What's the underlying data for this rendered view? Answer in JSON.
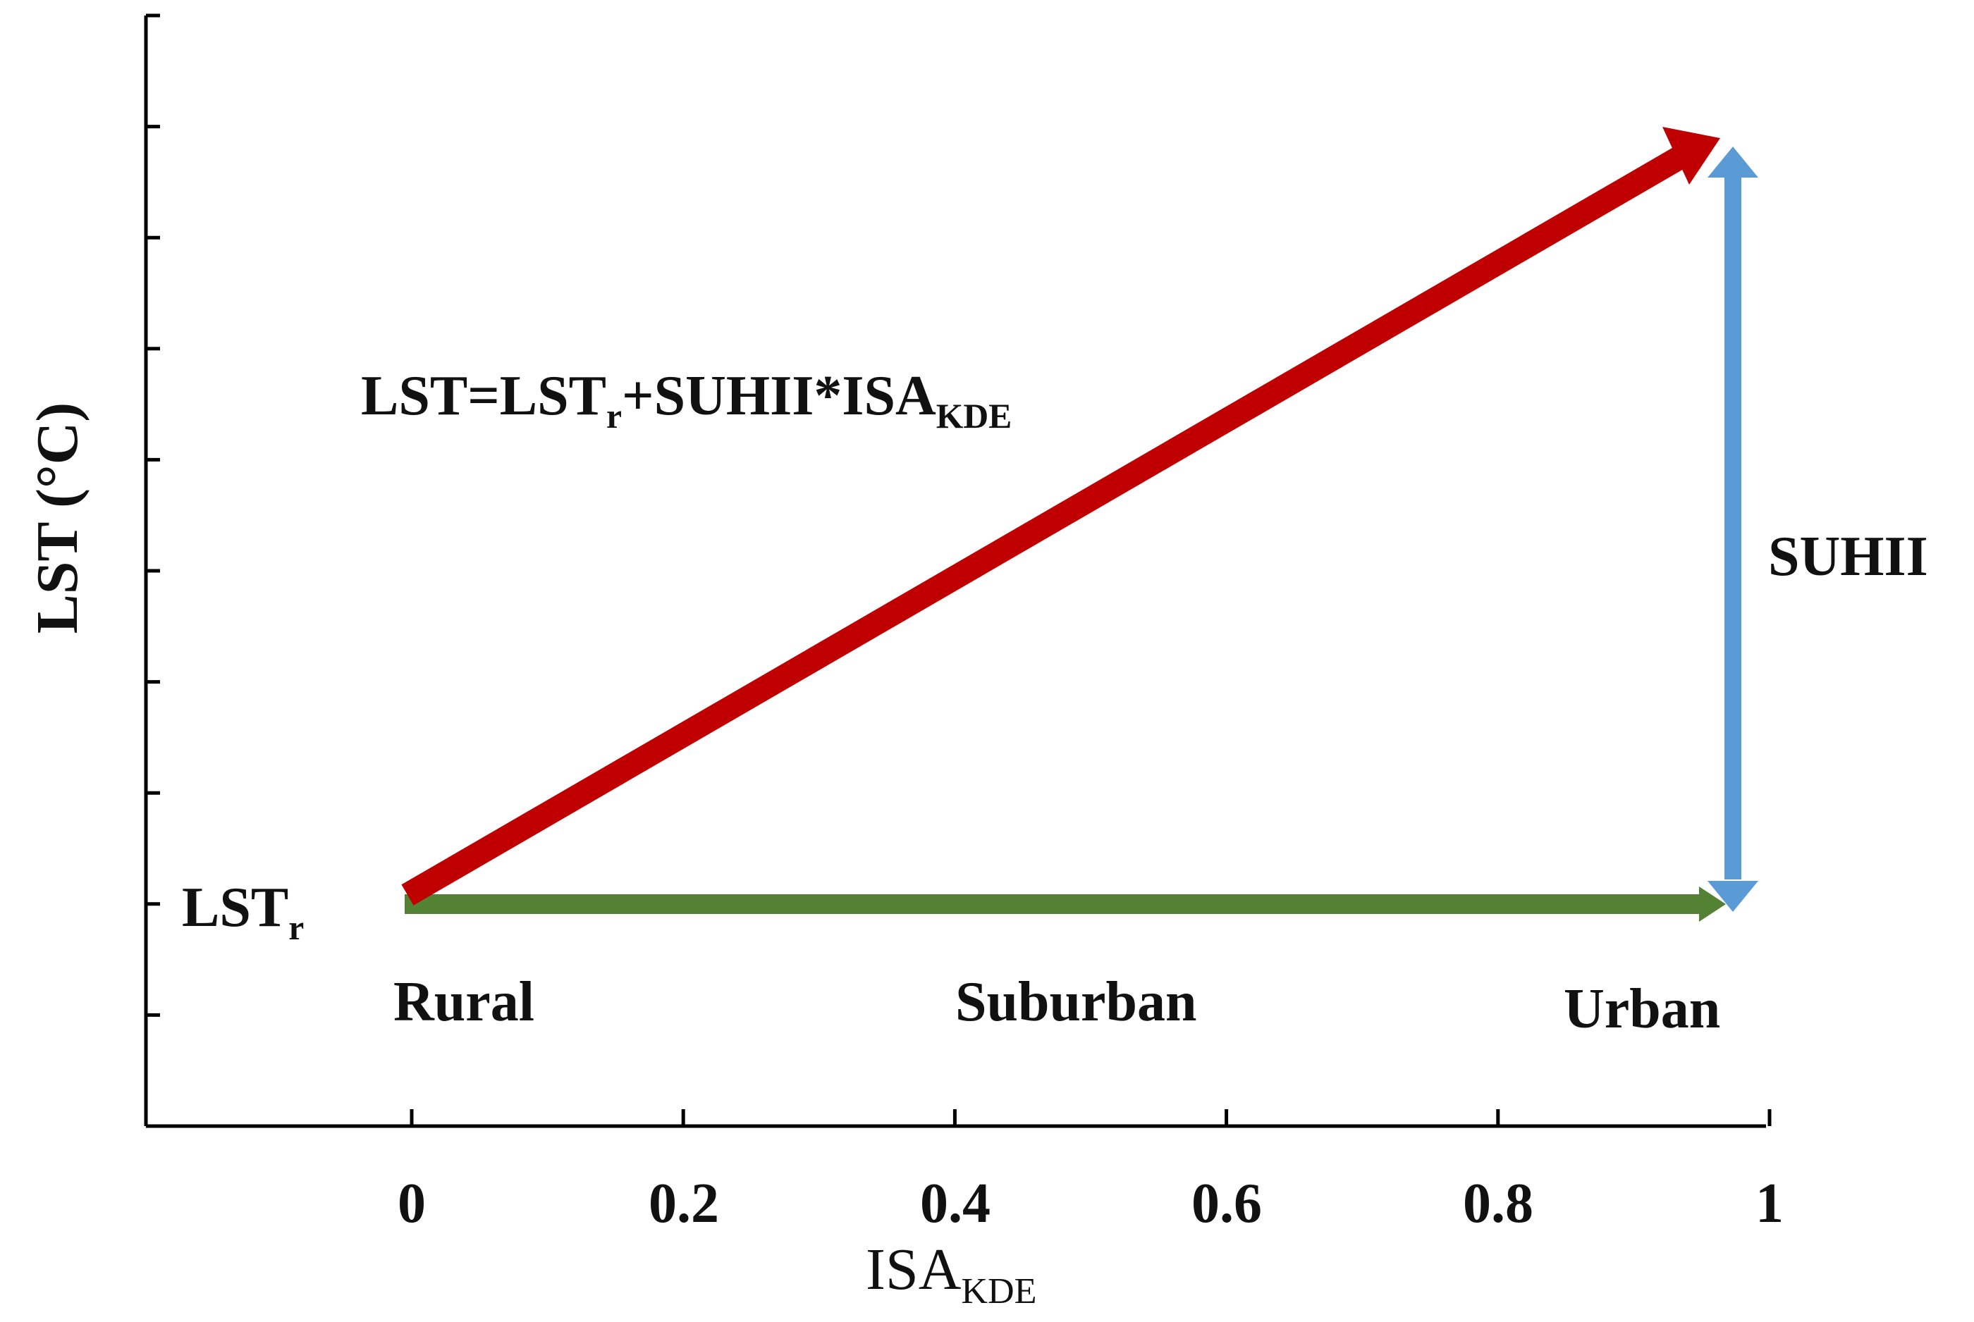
{
  "y_axis": {
    "label": "LST (°C)"
  },
  "x_axis": {
    "label_main": "ISA",
    "label_sub": "KDE",
    "ticks": [
      "0",
      "0.2",
      "0.4",
      "0.6",
      "0.8",
      "1"
    ]
  },
  "equation": {
    "part1": "LST=LST",
    "sub1": "r",
    "part2": "+SUHII*ISA",
    "sub2": "KDE"
  },
  "lst_r_label": {
    "main": "LST",
    "sub": "r"
  },
  "suhii_label": "SUHII",
  "zones": [
    "Rural",
    "Suburban",
    "Urban"
  ],
  "colors": {
    "trend_line": "#c00000",
    "baseline": "#548235",
    "suhii_arrow": "#5b9bd5",
    "axis": "#000000"
  }
}
